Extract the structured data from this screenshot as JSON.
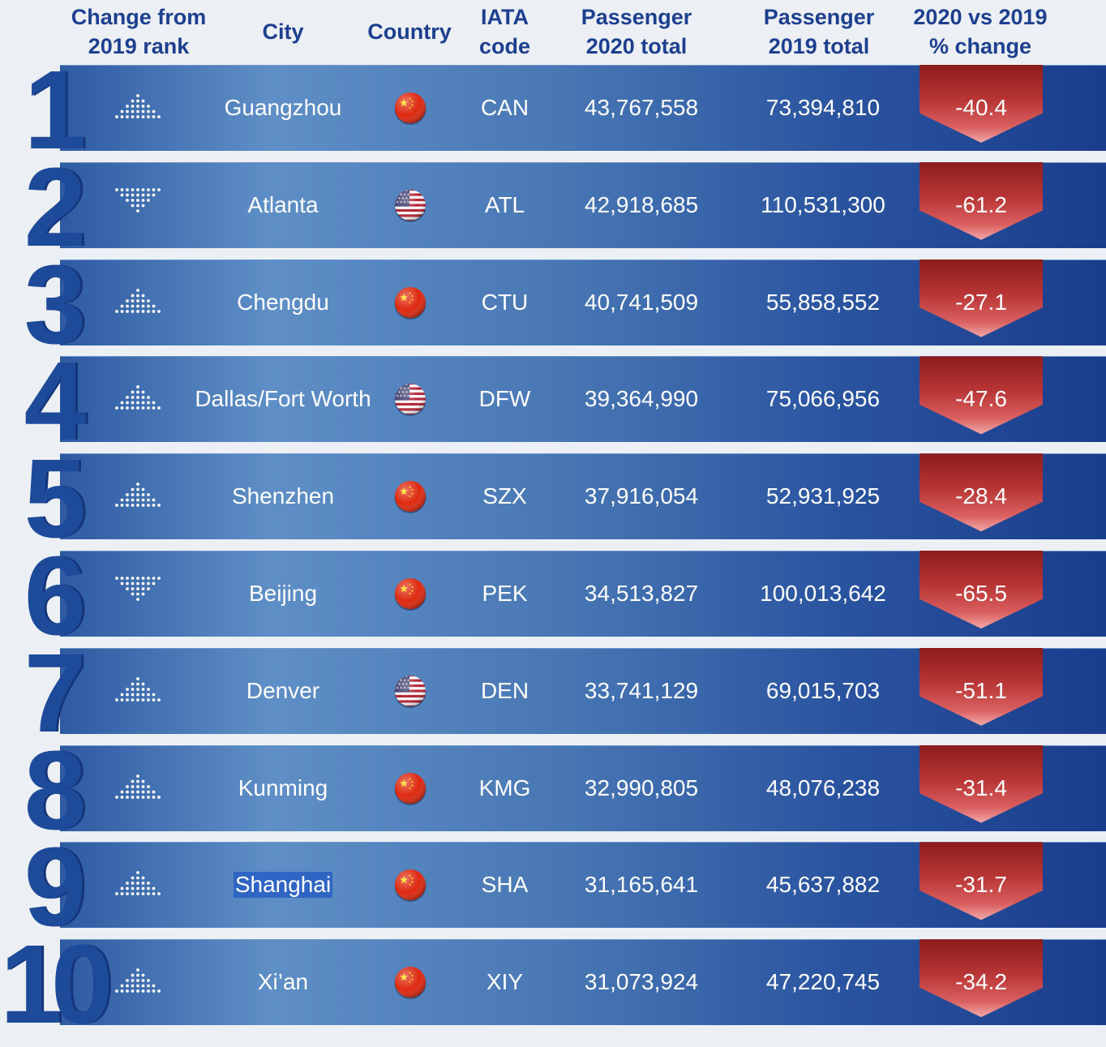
{
  "chart_data": {
    "type": "table",
    "columns": [
      "Change from\n2019 rank",
      "City",
      "Country",
      "IATA\ncode",
      "Passenger\n2020 total",
      "Passenger\n2019 total",
      "2020 vs 2019\n% change"
    ],
    "rows": [
      {
        "rank": "1",
        "rank_change": "up",
        "city": "Guangzhou",
        "country": "china-flag-icon",
        "iata": "CAN",
        "p2020": "43,767,558",
        "p2019": "73,394,810",
        "pct": "-40.4"
      },
      {
        "rank": "2",
        "rank_change": "down",
        "city": "Atlanta",
        "country": "usa-flag-icon",
        "iata": "ATL",
        "p2020": "42,918,685",
        "p2019": "110,531,300",
        "pct": "-61.2"
      },
      {
        "rank": "3",
        "rank_change": "up",
        "city": "Chengdu",
        "country": "china-flag-icon",
        "iata": "CTU",
        "p2020": "40,741,509",
        "p2019": "55,858,552",
        "pct": "-27.1"
      },
      {
        "rank": "4",
        "rank_change": "up",
        "city": "Dallas/Fort Worth",
        "country": "usa-flag-icon",
        "iata": "DFW",
        "p2020": "39,364,990",
        "p2019": "75,066,956",
        "pct": "-47.6"
      },
      {
        "rank": "5",
        "rank_change": "up",
        "city": "Shenzhen",
        "country": "china-flag-icon",
        "iata": "SZX",
        "p2020": "37,916,054",
        "p2019": "52,931,925",
        "pct": "-28.4"
      },
      {
        "rank": "6",
        "rank_change": "down",
        "city": "Beijing",
        "country": "china-flag-icon",
        "iata": "PEK",
        "p2020": "34,513,827",
        "p2019": "100,013,642",
        "pct": "-65.5"
      },
      {
        "rank": "7",
        "rank_change": "up",
        "city": "Denver",
        "country": "usa-flag-icon",
        "iata": "DEN",
        "p2020": "33,741,129",
        "p2019": "69,015,703",
        "pct": "-51.1"
      },
      {
        "rank": "8",
        "rank_change": "up",
        "city": "Kunming",
        "country": "china-flag-icon",
        "iata": "KMG",
        "p2020": "32,990,805",
        "p2019": "48,076,238",
        "pct": "-31.4"
      },
      {
        "rank": "9",
        "rank_change": "up",
        "city": "Shanghai",
        "country": "china-flag-icon",
        "iata": "SHA",
        "p2020": "31,165,641",
        "p2019": "45,637,882",
        "pct": "-31.7",
        "selected": true
      },
      {
        "rank": "10",
        "rank_change": "up",
        "city": "Xi’an",
        "country": "china-flag-icon",
        "iata": "XIY",
        "p2020": "31,073,924",
        "p2019": "47,220,745",
        "pct": "-34.2"
      }
    ]
  },
  "colors": {
    "header_text": "#1d3f8f",
    "band": "#3f6eb0",
    "change_arrow": "#b93535",
    "china_red": "#de2910",
    "china_yellow": "#ffde00",
    "us_red": "#b22234",
    "us_blue": "#3c3b6e",
    "selection": "#2f65c4"
  }
}
